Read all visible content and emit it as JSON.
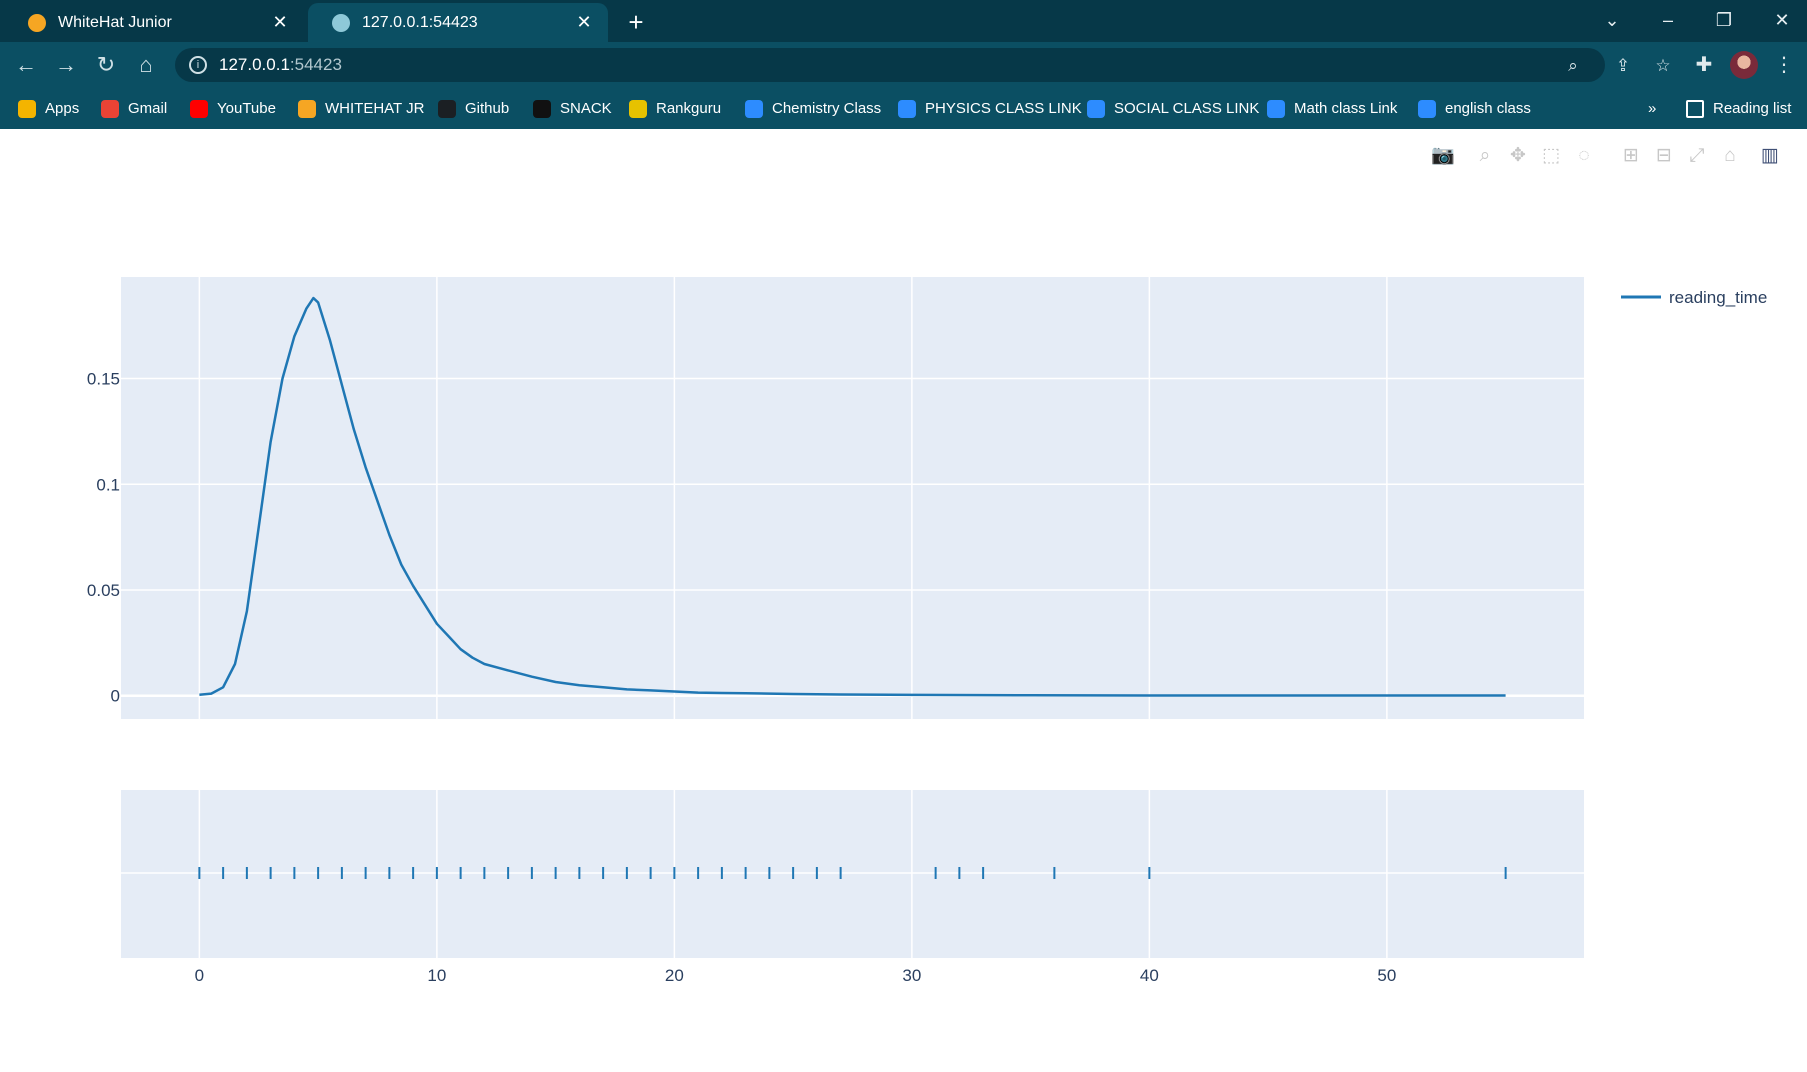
{
  "browser": {
    "tabs": [
      {
        "title": "WhiteHat Junior",
        "active": false,
        "close": "✕"
      },
      {
        "title": "127.0.0.1:54423",
        "active": true,
        "close": "✕"
      }
    ],
    "new_tab": "+",
    "window_controls": {
      "dropdown": "⌄",
      "minimize": "–",
      "restore": "❐",
      "close": "✕"
    },
    "address": {
      "host": "127.0.0.1",
      "port": ":54423"
    },
    "bookmarks": [
      {
        "label": "Apps",
        "icon": "apps-grid-icon",
        "color": "#f4b400"
      },
      {
        "label": "Gmail",
        "icon": "gmail-icon",
        "color": "#ea4335"
      },
      {
        "label": "YouTube",
        "icon": "youtube-icon",
        "color": "#ff0000"
      },
      {
        "label": "WHITEHAT JR",
        "icon": "whitehat-icon",
        "color": "#f6a623"
      },
      {
        "label": "Github",
        "icon": "github-icon",
        "color": "#1b1f23"
      },
      {
        "label": "SNACK",
        "icon": "snack-icon",
        "color": "#111111"
      },
      {
        "label": "Rankguru",
        "icon": "rankguru-icon",
        "color": "#e6c200"
      },
      {
        "label": "Chemistry Class",
        "icon": "zoom-icon",
        "color": "#2d8cff"
      },
      {
        "label": "PHYSICS CLASS LINK",
        "icon": "zoom-icon",
        "color": "#2d8cff"
      },
      {
        "label": "SOCIAL CLASS LINK",
        "icon": "zoom-icon",
        "color": "#2d8cff"
      },
      {
        "label": "Math class Link",
        "icon": "zoom-icon",
        "color": "#2d8cff"
      },
      {
        "label": "english class",
        "icon": "zoom-icon",
        "color": "#2d8cff"
      }
    ],
    "bookmarks_overflow": "»",
    "reading_list": "Reading list"
  },
  "chart_data": {
    "type": "line",
    "title": "",
    "xlabel": "",
    "ylabel": "",
    "legend_position": "top-right",
    "xlim": [
      -3.3,
      58.3
    ],
    "ylim_density": [
      -0.011,
      0.198
    ],
    "x_ticks": [
      0,
      10,
      20,
      30,
      40,
      50
    ],
    "x_tick_labels": [
      "0",
      "10",
      "20",
      "30",
      "40",
      "50"
    ],
    "y_ticks": [
      0,
      0.05,
      0.1,
      0.15
    ],
    "y_tick_labels": [
      "0",
      "0.05",
      "0.1",
      "0.15"
    ],
    "series": [
      {
        "name": "reading_time",
        "color": "#1f77b4",
        "x": [
          0,
          0.5,
          1,
          1.5,
          2,
          2.5,
          3,
          3.5,
          4,
          4.5,
          4.8,
          5,
          5.5,
          6,
          6.5,
          7,
          7.5,
          8,
          8.5,
          9,
          9.5,
          10,
          10.5,
          11,
          11.5,
          12,
          13,
          14,
          15,
          16,
          17,
          18,
          19,
          20,
          21,
          22,
          23,
          24,
          25,
          27,
          30,
          35,
          40,
          45,
          50,
          55
        ],
        "y": [
          0.0005,
          0.001,
          0.004,
          0.015,
          0.04,
          0.08,
          0.12,
          0.15,
          0.17,
          0.183,
          0.188,
          0.186,
          0.168,
          0.147,
          0.126,
          0.108,
          0.092,
          0.076,
          0.062,
          0.052,
          0.043,
          0.034,
          0.028,
          0.022,
          0.018,
          0.015,
          0.012,
          0.009,
          0.0065,
          0.005,
          0.004,
          0.003,
          0.0025,
          0.002,
          0.0015,
          0.0013,
          0.0012,
          0.001,
          0.0008,
          0.0006,
          0.0004,
          0.0002,
          0.0001,
          0.0001,
          0.0001,
          0.0001
        ]
      }
    ],
    "rug": {
      "name": "reading_time",
      "values": [
        0,
        1,
        2,
        3,
        4,
        5,
        6,
        7,
        8,
        9,
        10,
        11,
        12,
        13,
        14,
        15,
        16,
        17,
        18,
        19,
        20,
        21,
        22,
        23,
        24,
        25,
        26,
        27,
        31,
        32,
        33,
        36,
        40,
        55
      ]
    },
    "grid": true
  },
  "modebar": [
    {
      "name": "camera-icon",
      "glyph": "📷"
    },
    {
      "name": "zoom-icon",
      "glyph": "⌕"
    },
    {
      "name": "pan-icon",
      "glyph": "✥"
    },
    {
      "name": "box-select-icon",
      "glyph": "⬚"
    },
    {
      "name": "lasso-select-icon",
      "glyph": "◌"
    },
    {
      "name": "zoom-in-icon",
      "glyph": "⊞"
    },
    {
      "name": "zoom-out-icon",
      "glyph": "⊟"
    },
    {
      "name": "autoscale-icon",
      "glyph": "⤢"
    },
    {
      "name": "reset-axes-icon",
      "glyph": "⌂"
    },
    {
      "name": "plotly-logo-icon",
      "glyph": "▥"
    }
  ]
}
